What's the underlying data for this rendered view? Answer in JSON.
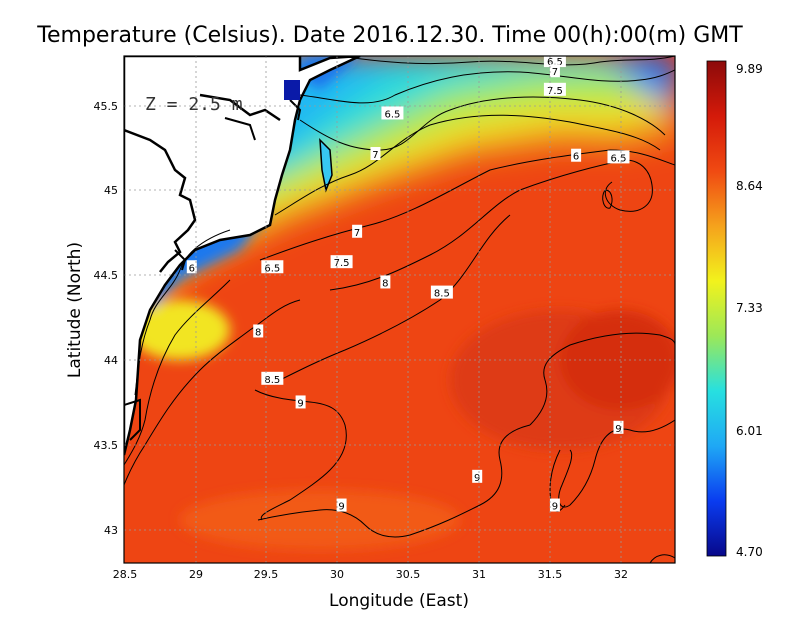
{
  "title": "Temperature (Celsius). Date 2016.12.30. Time 00(h):00(m)  GMT",
  "depth_label": "Z = 2.5 m",
  "x_axis": {
    "label": "Longitude (East)",
    "ticks": [
      "28.5",
      "29",
      "29.5",
      "30",
      "30.5",
      "31",
      "31.5",
      "32"
    ],
    "range": [
      28.5,
      32.4
    ]
  },
  "y_axis": {
    "label": "Latitude (North)",
    "ticks": [
      "43",
      "43.5",
      "44",
      "44.5",
      "45",
      "45.5"
    ],
    "range": [
      42.8,
      45.8
    ]
  },
  "colorbar": {
    "min_label": "4.70",
    "ticks": [
      "4.70",
      "6.01",
      "7.33",
      "8.64",
      "9.89"
    ],
    "colors": [
      "#08088a",
      "#0a3cf0",
      "#1fa8f5",
      "#27e0e0",
      "#9ce858",
      "#f2f21c",
      "#f5a21c",
      "#f04a12",
      "#d41a0a",
      "#8c0a0a"
    ]
  },
  "contour_labels": [
    {
      "text": "6.5",
      "lon": 31.55,
      "lat": 45.77
    },
    {
      "text": "7",
      "lon": 31.55,
      "lat": 45.71
    },
    {
      "text": "7.5",
      "lon": 31.55,
      "lat": 45.6
    },
    {
      "text": "6.5",
      "lon": 30.4,
      "lat": 45.46
    },
    {
      "text": "7",
      "lon": 30.28,
      "lat": 45.22
    },
    {
      "text": "6",
      "lon": 31.7,
      "lat": 45.21
    },
    {
      "text": "6.5",
      "lon": 32.0,
      "lat": 45.2
    },
    {
      "text": "7",
      "lon": 30.15,
      "lat": 44.76
    },
    {
      "text": "7.5",
      "lon": 30.04,
      "lat": 44.58
    },
    {
      "text": "6.5",
      "lon": 29.55,
      "lat": 44.55
    },
    {
      "text": "6",
      "lon": 28.98,
      "lat": 44.55
    },
    {
      "text": "8",
      "lon": 30.35,
      "lat": 44.46
    },
    {
      "text": "8.5",
      "lon": 30.75,
      "lat": 44.4
    },
    {
      "text": "8",
      "lon": 29.45,
      "lat": 44.17
    },
    {
      "text": "8.5",
      "lon": 29.55,
      "lat": 43.89
    },
    {
      "text": "9",
      "lon": 29.75,
      "lat": 43.75
    },
    {
      "text": "9",
      "lon": 32.0,
      "lat": 43.6
    },
    {
      "text": "9",
      "lon": 31.0,
      "lat": 43.31
    },
    {
      "text": "9",
      "lon": 30.04,
      "lat": 43.14
    },
    {
      "text": "9",
      "lon": 31.55,
      "lat": 43.14
    }
  ]
}
